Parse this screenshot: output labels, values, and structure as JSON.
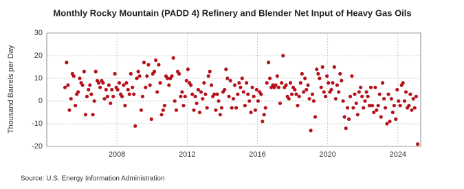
{
  "chart_data": {
    "type": "scatter",
    "title": "Monthly Rocky Mountain (PADD 4) Refinery and Blender Net Input of Heavy Gas Oils",
    "ylabel": "Thousand Barrels per Day",
    "source": "Source: U.S. Energy Information Administration",
    "xlim": [
      2004,
      2025.3
    ],
    "xticks": [
      2008,
      2012,
      2016,
      2020,
      2024
    ],
    "ylim": [
      -20,
      30
    ],
    "yticks": [
      -20,
      -10,
      0,
      10,
      20,
      30
    ],
    "grid": true,
    "series": [
      {
        "name": "Heavy Gas Oils",
        "color": "#b5121b",
        "x": [
          2005.04,
          2005.13,
          2005.21,
          2005.29,
          2005.38,
          2005.46,
          2005.54,
          2005.63,
          2005.71,
          2005.79,
          2005.88,
          2005.96,
          2006.04,
          2006.13,
          2006.21,
          2006.29,
          2006.38,
          2006.46,
          2006.54,
          2006.63,
          2006.71,
          2006.79,
          2006.88,
          2006.96,
          2007.04,
          2007.13,
          2007.21,
          2007.29,
          2007.38,
          2007.46,
          2007.54,
          2007.63,
          2007.71,
          2007.79,
          2007.88,
          2007.96,
          2008.04,
          2008.13,
          2008.21,
          2008.29,
          2008.38,
          2008.46,
          2008.54,
          2008.63,
          2008.71,
          2008.79,
          2008.88,
          2008.96,
          2009.04,
          2009.13,
          2009.21,
          2009.29,
          2009.38,
          2009.46,
          2009.54,
          2009.63,
          2009.71,
          2009.79,
          2009.88,
          2009.96,
          2010.04,
          2010.13,
          2010.21,
          2010.29,
          2010.38,
          2010.46,
          2010.54,
          2010.63,
          2010.71,
          2010.79,
          2010.88,
          2010.96,
          2011.04,
          2011.13,
          2011.21,
          2011.29,
          2011.38,
          2011.46,
          2011.54,
          2011.63,
          2011.71,
          2011.79,
          2011.88,
          2011.96,
          2012.04,
          2012.13,
          2012.21,
          2012.29,
          2012.38,
          2012.46,
          2012.54,
          2012.63,
          2012.71,
          2012.79,
          2012.88,
          2012.96,
          2013.04,
          2013.13,
          2013.21,
          2013.29,
          2013.38,
          2013.46,
          2013.54,
          2013.63,
          2013.71,
          2013.79,
          2013.88,
          2013.96,
          2014.04,
          2014.13,
          2014.21,
          2014.29,
          2014.38,
          2014.46,
          2014.54,
          2014.63,
          2014.71,
          2014.79,
          2014.88,
          2014.96,
          2015.04,
          2015.13,
          2015.21,
          2015.29,
          2015.38,
          2015.46,
          2015.54,
          2015.63,
          2015.71,
          2015.79,
          2015.88,
          2015.96,
          2016.04,
          2016.13,
          2016.21,
          2016.29,
          2016.38,
          2016.46,
          2016.54,
          2016.63,
          2016.71,
          2016.79,
          2016.88,
          2016.96,
          2017.04,
          2017.13,
          2017.21,
          2017.29,
          2017.38,
          2017.46,
          2017.54,
          2017.63,
          2017.71,
          2017.79,
          2017.88,
          2017.96,
          2018.04,
          2018.13,
          2018.21,
          2018.29,
          2018.38,
          2018.46,
          2018.54,
          2018.63,
          2018.71,
          2018.79,
          2018.88,
          2018.96,
          2019.04,
          2019.13,
          2019.21,
          2019.29,
          2019.38,
          2019.46,
          2019.54,
          2019.63,
          2019.71,
          2019.79,
          2019.88,
          2019.96,
          2020.04,
          2020.13,
          2020.21,
          2020.29,
          2020.38,
          2020.46,
          2020.54,
          2020.63,
          2020.71,
          2020.79,
          2020.88,
          2020.96,
          2021.04,
          2021.13,
          2021.21,
          2021.29,
          2021.38,
          2021.46,
          2021.54,
          2021.63,
          2021.71,
          2021.79,
          2021.88,
          2021.96,
          2022.04,
          2022.13,
          2022.21,
          2022.29,
          2022.38,
          2022.46,
          2022.54,
          2022.63,
          2022.71,
          2022.79,
          2022.88,
          2022.96,
          2023.04,
          2023.13,
          2023.21,
          2023.29,
          2023.38,
          2023.46,
          2023.54,
          2023.63,
          2023.71,
          2023.79,
          2023.88,
          2023.96,
          2024.04,
          2024.13,
          2024.21,
          2024.29,
          2024.38,
          2024.46,
          2024.54,
          2024.63,
          2024.71,
          2024.79,
          2024.88,
          2024.96,
          2025.04,
          2025.13
        ],
        "values": [
          6,
          17,
          7,
          -4,
          1,
          12,
          11,
          -2,
          3,
          4,
          10,
          8,
          7,
          13,
          -6,
          2,
          5,
          7,
          3,
          -6,
          0,
          13,
          9,
          8,
          6,
          9,
          8,
          1,
          5,
          2,
          7,
          -1,
          5,
          2,
          12,
          6,
          5,
          8,
          3,
          2,
          7,
          -2,
          8,
          5,
          3,
          12,
          6,
          3,
          -11,
          10,
          13,
          11,
          -4,
          2,
          17,
          6,
          11,
          16,
          7,
          -8,
          12,
          13,
          18,
          4,
          16,
          8,
          -6,
          -4,
          -2,
          11,
          10,
          7,
          10,
          11,
          19,
          0,
          -4,
          13,
          12,
          2,
          4,
          -2,
          2,
          9,
          14,
          8,
          7,
          3,
          -4,
          2,
          -1,
          5,
          -5,
          4,
          1,
          8,
          3,
          -3,
          11,
          13,
          7,
          2,
          3,
          -4,
          3,
          0,
          -6,
          -3,
          4,
          5,
          14,
          10,
          2,
          9,
          -3,
          1,
          7,
          -3,
          3,
          8,
          6,
          10,
          4,
          -2,
          8,
          3,
          0,
          -5,
          6,
          2,
          -4,
          5,
          0,
          4,
          3,
          -9,
          -6,
          -3,
          8,
          17,
          10,
          6,
          7,
          6,
          7,
          11,
          6,
          -1,
          8,
          20,
          6,
          7,
          2,
          1,
          8,
          3,
          6,
          5,
          3,
          -2,
          2,
          8,
          12,
          4,
          10,
          5,
          7,
          1,
          -13,
          3,
          0,
          -7,
          14,
          12,
          10,
          6,
          15,
          4,
          2,
          11,
          8,
          4,
          5,
          8,
          15,
          1,
          7,
          4,
          12,
          9,
          0,
          -7,
          -12,
          -3,
          -8,
          2,
          11,
          -3,
          3,
          -1,
          -6,
          4,
          6,
          2,
          -3,
          0,
          4,
          2,
          -2,
          6,
          -2,
          -5,
          6,
          -4,
          -2,
          3,
          -7,
          8,
          1,
          -3,
          -10,
          3,
          -9,
          1,
          -5,
          -2,
          -8,
          5,
          0,
          -2,
          7,
          8,
          0,
          4,
          -3,
          -2,
          3,
          -4,
          1,
          -3,
          2,
          -19
        ]
      }
    ]
  }
}
